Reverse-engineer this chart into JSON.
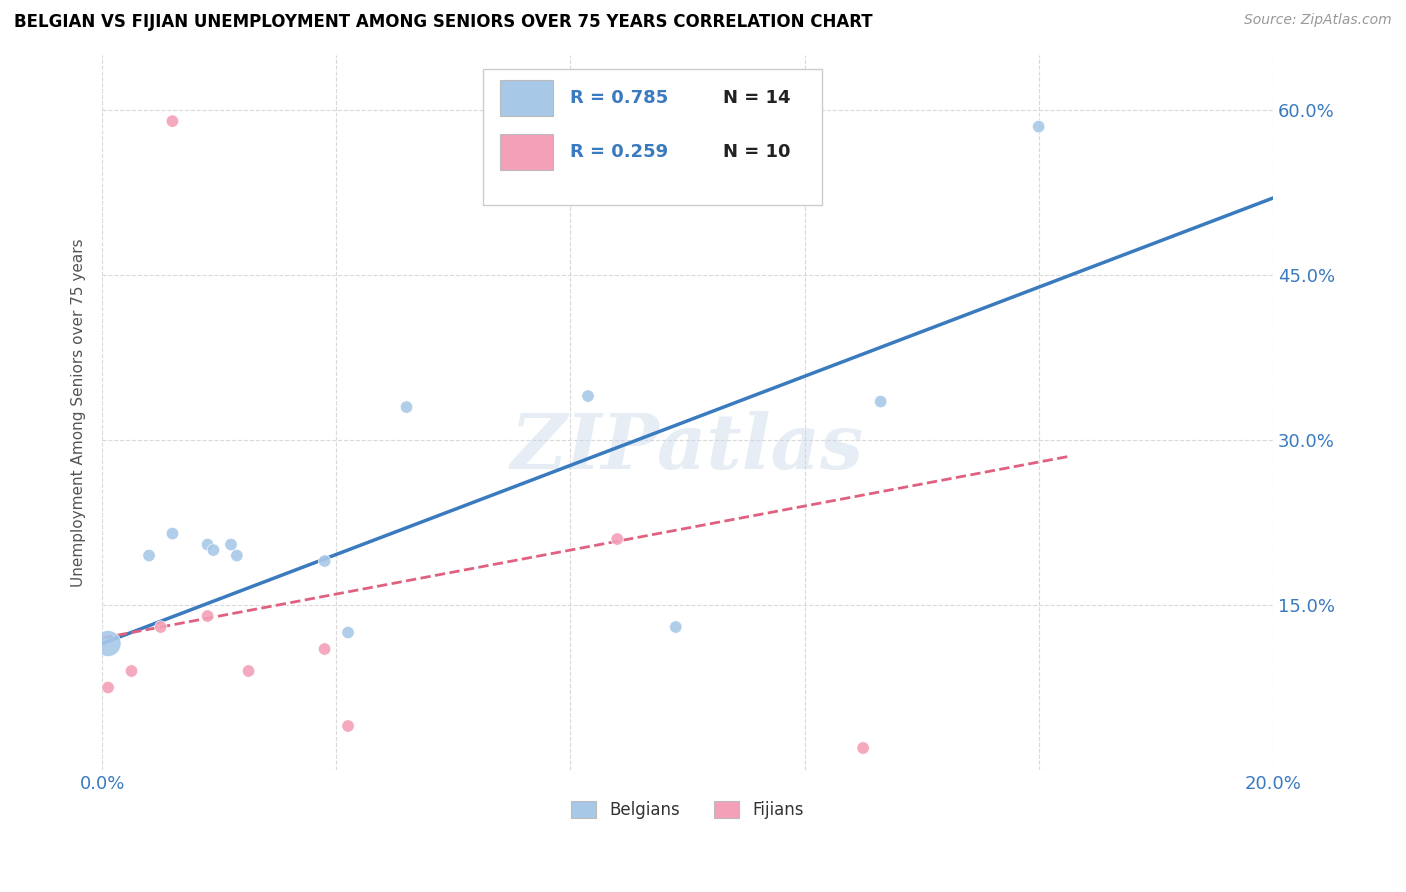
{
  "title": "BELGIAN VS FIJIAN UNEMPLOYMENT AMONG SENIORS OVER 75 YEARS CORRELATION CHART",
  "source": "Source: ZipAtlas.com",
  "ylabel": "Unemployment Among Seniors over 75 years",
  "xlim": [
    0.0,
    0.2
  ],
  "ylim": [
    0.0,
    0.65
  ],
  "xticks": [
    0.0,
    0.04,
    0.08,
    0.12,
    0.16,
    0.2
  ],
  "yticks": [
    0.0,
    0.15,
    0.3,
    0.45,
    0.6
  ],
  "belgian_color": "#a8c8e8",
  "fijian_color": "#f4a0b8",
  "belgian_line_color": "#3a7abf",
  "fijian_line_color": "#e06080",
  "legend_R_belgian": "R = 0.785",
  "legend_N_belgian": "N = 14",
  "legend_R_fijian": "R = 0.259",
  "legend_N_fijian": "N = 10",
  "watermark": "ZIPatlas",
  "belgian_x": [
    0.001,
    0.008,
    0.012,
    0.018,
    0.019,
    0.022,
    0.023,
    0.038,
    0.042,
    0.052,
    0.083,
    0.098,
    0.133,
    0.16
  ],
  "belgian_y": [
    0.115,
    0.195,
    0.215,
    0.205,
    0.2,
    0.205,
    0.195,
    0.19,
    0.125,
    0.33,
    0.34,
    0.13,
    0.335,
    0.585
  ],
  "belgian_sizes": [
    350,
    80,
    80,
    80,
    80,
    80,
    80,
    80,
    80,
    80,
    80,
    80,
    80,
    80
  ],
  "fijian_x": [
    0.001,
    0.005,
    0.01,
    0.012,
    0.018,
    0.025,
    0.038,
    0.042,
    0.088,
    0.13
  ],
  "fijian_y": [
    0.075,
    0.09,
    0.13,
    0.59,
    0.14,
    0.09,
    0.11,
    0.04,
    0.21,
    0.02
  ],
  "fijian_sizes": [
    80,
    80,
    80,
    80,
    80,
    80,
    80,
    80,
    80,
    80
  ],
  "grid_color": "#d0d0d0",
  "right_ytick_labels": [
    "60.0%",
    "45.0%",
    "30.0%",
    "15.0%"
  ],
  "right_ytick_positions": [
    0.6,
    0.45,
    0.3,
    0.15
  ],
  "belgian_line_x": [
    0.0,
    0.2
  ],
  "belgian_line_y": [
    0.115,
    0.52
  ],
  "fijian_line_x": [
    0.0,
    0.165
  ],
  "fijian_line_y": [
    0.12,
    0.285
  ]
}
